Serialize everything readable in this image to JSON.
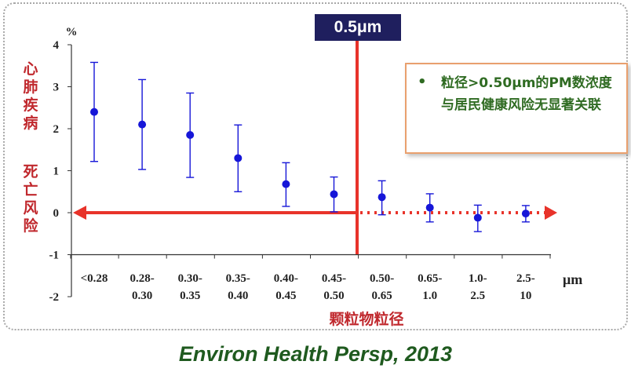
{
  "chart_data": {
    "type": "scatter",
    "title": "",
    "ylabel": "心肺疾病死亡风险",
    "ylabel_lines": [
      "心肺疾病",
      "死亡风险"
    ],
    "yunit": "%",
    "xlabel": "颗粒物粒径",
    "xunit": "μm",
    "ylim": [
      -2,
      4
    ],
    "yticks": [
      "4",
      "3",
      "2",
      "1",
      "0",
      "-1",
      "-2"
    ],
    "ytick_values": [
      4,
      3,
      2,
      1,
      0,
      -1,
      -2
    ],
    "categories": [
      "<0.28",
      "0.28-0.30",
      "0.30-0.35",
      "0.35-0.40",
      "0.40-0.45",
      "0.45-0.50",
      "0.50-0.65",
      "0.65-1.0",
      "1.0-2.5",
      "2.5-10"
    ],
    "category_lines": [
      [
        "<0.28",
        ""
      ],
      [
        "0.28-",
        "0.30"
      ],
      [
        "0.30-",
        "0.35"
      ],
      [
        "0.35-",
        "0.40"
      ],
      [
        "0.40-",
        "0.45"
      ],
      [
        "0.45-",
        "0.50"
      ],
      [
        "0.50-",
        "0.65"
      ],
      [
        "0.65-",
        "1.0"
      ],
      [
        "1.0-",
        "2.5"
      ],
      [
        "2.5-",
        "10"
      ]
    ],
    "series": [
      {
        "values": [
          2.4,
          2.1,
          1.85,
          1.3,
          0.68,
          0.44,
          0.37,
          0.12,
          -0.12,
          -0.02
        ],
        "lower": [
          1.22,
          1.03,
          0.84,
          0.5,
          0.15,
          0.02,
          -0.05,
          -0.22,
          -0.45,
          -0.22
        ],
        "upper": [
          3.58,
          3.17,
          2.85,
          2.09,
          1.19,
          0.85,
          0.76,
          0.45,
          0.18,
          0.17
        ]
      }
    ],
    "grid": false,
    "threshold": {
      "label": "0.5μm",
      "between_categories": [
        5,
        6
      ]
    },
    "colors": {
      "marker": "#1616d8",
      "threshold": "#e8332a",
      "arrow": "#e8332a",
      "axis": "#333333",
      "label_red": "#c0282d"
    }
  },
  "note": {
    "bullet": "•",
    "text": "粒径>0.50μm的PM数浓度与居民健康风险无显著关联"
  },
  "citation": "Environ Health Persp, 2013"
}
